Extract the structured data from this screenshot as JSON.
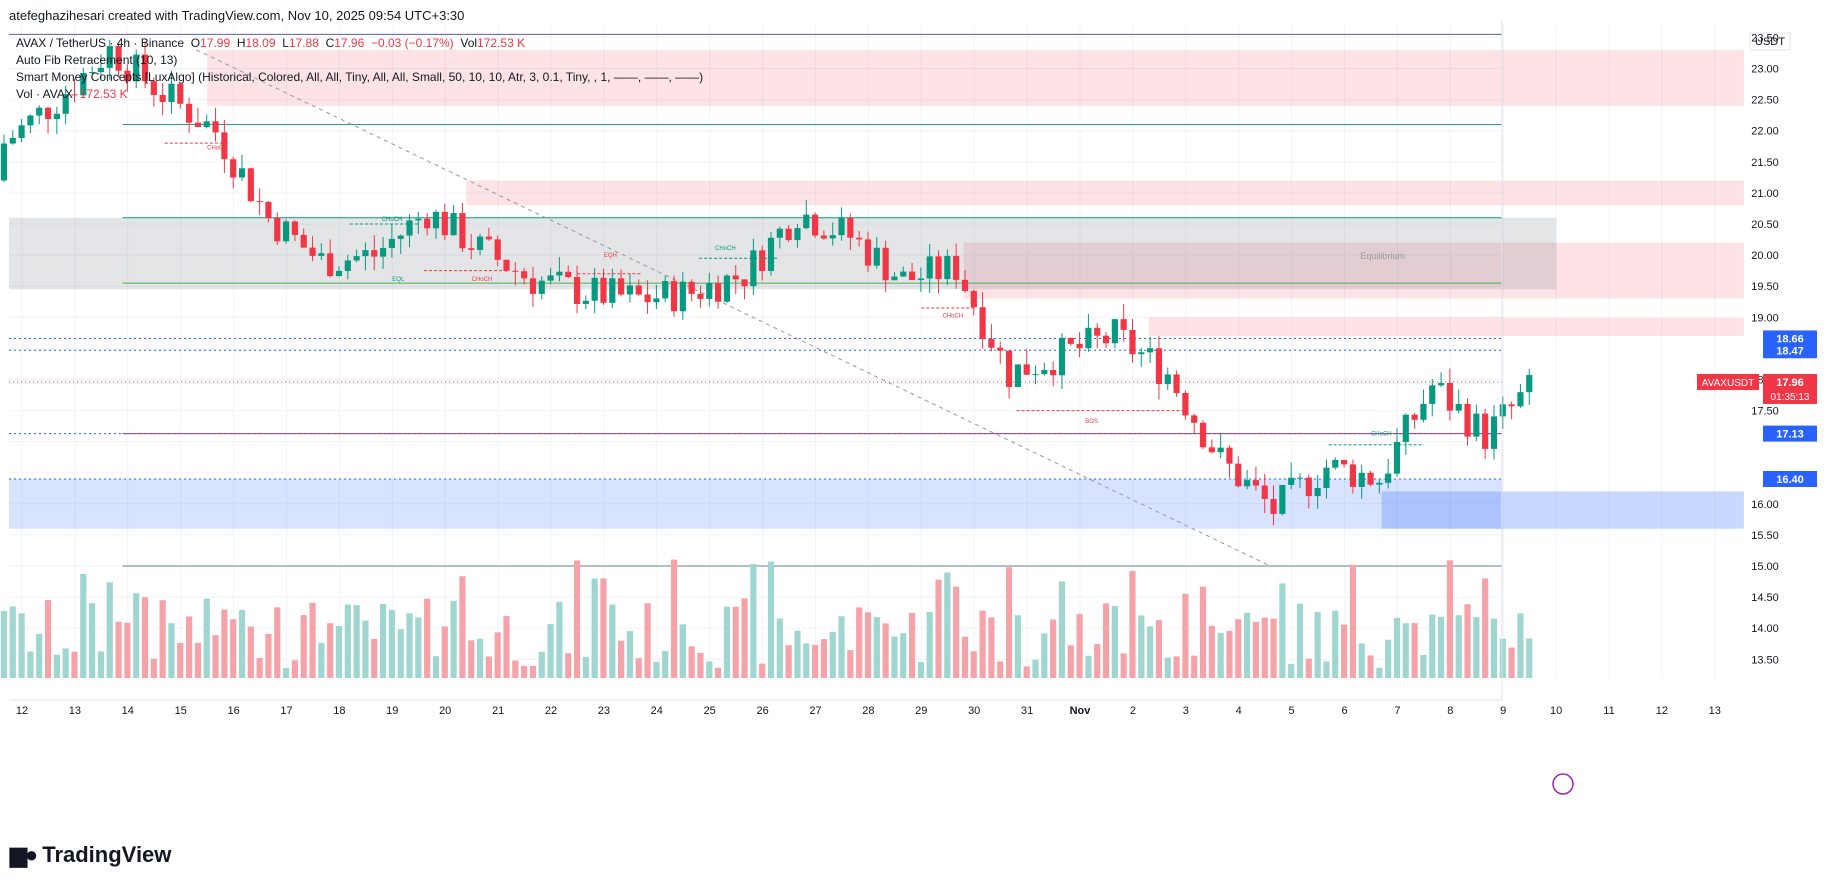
{
  "header": {
    "created_by": "atefeghazihesari created with TradingView.com, Nov 10, 2025 09:54 UTC+3:30"
  },
  "legend": {
    "symbol": "AVAX / TetherUS · 4h · Binance",
    "open_label": "O",
    "open": "17.99",
    "high_label": "H",
    "high": "18.09",
    "low_label": "L",
    "low": "17.88",
    "close_label": "C",
    "close": "17.96",
    "change": "−0.03 (−0.17%)",
    "vol_label": "Vol",
    "vol": "172.53 K",
    "indicator1": "Auto Fib Retracement (10, 13)",
    "indicator2": "Smart Money Concepts [LuxAlgo] (Historical, Colored, All, All, Tiny, All, All, Small, 50, 10, 10, Atr, 3, 0.1, Tiny, , 1, ——, ——, ——)",
    "indicator3_label": "Vol · AVAX",
    "indicator3_value": "172.53 K"
  },
  "brand": {
    "name": "TradingView",
    "logo_icon": "tradingview-logo-icon"
  },
  "chart_data": {
    "type": "candlestick",
    "symbol": "AVAXUSDT",
    "currency": "USDT",
    "interval": "4h",
    "yaxis": {
      "ticks": [
        13.5,
        14,
        14.5,
        15,
        15.5,
        16,
        16.5,
        17,
        17.5,
        18,
        18.5,
        19,
        19.5,
        20,
        20.5,
        21,
        21.5,
        22,
        22.5,
        23,
        23.5
      ],
      "range": [
        13.2,
        23.7
      ]
    },
    "xaxis": {
      "ticks": [
        "12",
        "13",
        "14",
        "15",
        "16",
        "17",
        "18",
        "19",
        "20",
        "21",
        "22",
        "23",
        "24",
        "25",
        "26",
        "27",
        "28",
        "29",
        "30",
        "31",
        "Nov",
        "2",
        "3",
        "4",
        "5",
        "6",
        "7",
        "8",
        "9",
        "10",
        "11",
        "12",
        "13"
      ]
    },
    "price_labels": [
      {
        "value": 18.66,
        "text": "18.66",
        "color": "#2962ff"
      },
      {
        "value": 18.47,
        "text": "18.47",
        "color": "#2962ff"
      },
      {
        "value": 17.96,
        "text": "17.96",
        "color": "#f23645",
        "symbol": "AVAXUSDT",
        "countdown": "01:35:13"
      },
      {
        "value": 17.13,
        "text": "17.13",
        "color": "#2962ff"
      },
      {
        "value": 16.4,
        "text": "16.40",
        "color": "#2962ff"
      }
    ],
    "annotations": [
      {
        "text": "Equilibrium"
      },
      {
        "text": "CHoCH"
      },
      {
        "text": "EQL"
      },
      {
        "text": "EQH"
      },
      {
        "text": "BOS"
      }
    ],
    "anchors": [
      {
        "date": "12",
        "price": 21.8
      },
      {
        "date": "13",
        "price": 22.5
      },
      {
        "date": "14",
        "price": 23.3
      },
      {
        "date": "15",
        "price": 22.6
      },
      {
        "date": "16",
        "price": 22.0
      },
      {
        "date": "17",
        "price": 20.6
      },
      {
        "date": "18",
        "price": 19.9
      },
      {
        "date": "19",
        "price": 20.0
      },
      {
        "date": "20",
        "price": 20.7
      },
      {
        "date": "21",
        "price": 20.1
      },
      {
        "date": "22",
        "price": 19.6
      },
      {
        "date": "23",
        "price": 19.4
      },
      {
        "date": "24",
        "price": 19.3
      },
      {
        "date": "25",
        "price": 19.4
      },
      {
        "date": "26",
        "price": 19.7
      },
      {
        "date": "27",
        "price": 20.7
      },
      {
        "date": "28",
        "price": 20.3
      },
      {
        "date": "29",
        "price": 19.6
      },
      {
        "date": "30",
        "price": 19.8
      },
      {
        "date": "31",
        "price": 18.1
      },
      {
        "date": "Nov",
        "price": 18.4
      },
      {
        "date": "2",
        "price": 18.7
      },
      {
        "date": "3",
        "price": 18.1
      },
      {
        "date": "4",
        "price": 16.7
      },
      {
        "date": "5",
        "price": 15.9
      },
      {
        "date": "6",
        "price": 16.6
      },
      {
        "date": "7",
        "price": 16.4
      },
      {
        "date": "8",
        "price": 17.9
      },
      {
        "date": "9",
        "price": 17.1
      },
      {
        "date": "10",
        "price": 17.96
      }
    ],
    "colors": {
      "up": "#089981",
      "down": "#f23645",
      "vol_up": "#9fd6cf",
      "vol_down": "#f5a3a9"
    }
  }
}
